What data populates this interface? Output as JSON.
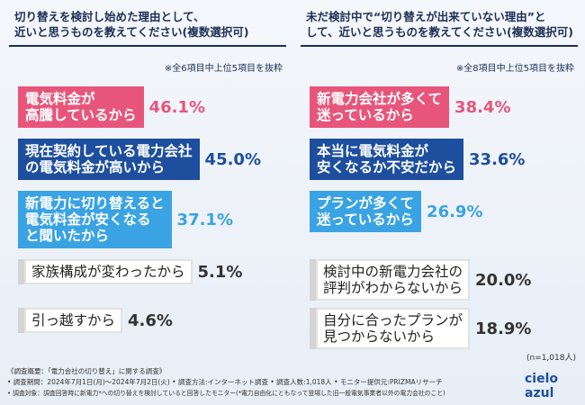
{
  "chart_data": [
    {
      "type": "bar",
      "title": "切り替えを検討し始めた理由として、\n近いと思うものを教えてください(複数選択可)",
      "note": "※全6項目中上位5項目を抜粋",
      "categories": [
        "電気料金が\n高騰しているから",
        "現在契約している電力会社\nの電気料金が高いから",
        "新電力に切り替えると\n電気料金が安くなる\nと聞いたから",
        "家族構成が変わったから",
        "引っ越すから"
      ],
      "values": [
        46.1,
        45.0,
        37.1,
        5.1,
        4.6
      ],
      "value_labels": [
        "46.1%",
        "45.0%",
        "37.1%",
        "5.1%",
        "4.6%"
      ],
      "colors": [
        "#e8557b",
        "#1d4f9e",
        "#3aa3e3",
        "#d4d4d4",
        "#d4d4d4"
      ]
    },
    {
      "type": "bar",
      "title": "未だ検討中で“切り替えが出来ていない理由”と\nして、近いと思うものを教えてください(複数選択可)",
      "note": "※全8項目中上位5項目を抜粋",
      "categories": [
        "新電力会社が多くて\n迷っているから",
        "本当に電気料金が\n安くなるか不安だから",
        "プランが多くて\n迷っているから",
        "検討中の新電力会社の\n評判がわからないから",
        "自分に合ったプランが\n見つからないから"
      ],
      "values": [
        38.4,
        33.6,
        26.9,
        20.0,
        18.9
      ],
      "value_labels": [
        "38.4%",
        "33.6%",
        "26.9%",
        "20.0%",
        "18.9%"
      ],
      "colors": [
        "#e8557b",
        "#1d4f9e",
        "#3aa3e3",
        "#d4d4d4",
        "#d4d4d4"
      ]
    }
  ],
  "sample": "(n=1,018人)",
  "footer": [
    "《調査概要：「電力会社の切り替え」に関する調査》",
    "• 調査期間：2024年7月1日(月)～2024年7月2日(火)  • 調査方法:インターネット調査  • 調査人数:1,018人  • モニター提供元:PRIZMAリサーチ",
    "• 調査対象：調査回答時に新電力*への切り替えを検討していると回答したモニター(*電力自由化にともなって登場した旧一般電気事業者以外の電力会社のこと)"
  ],
  "brand": "cielo azul"
}
